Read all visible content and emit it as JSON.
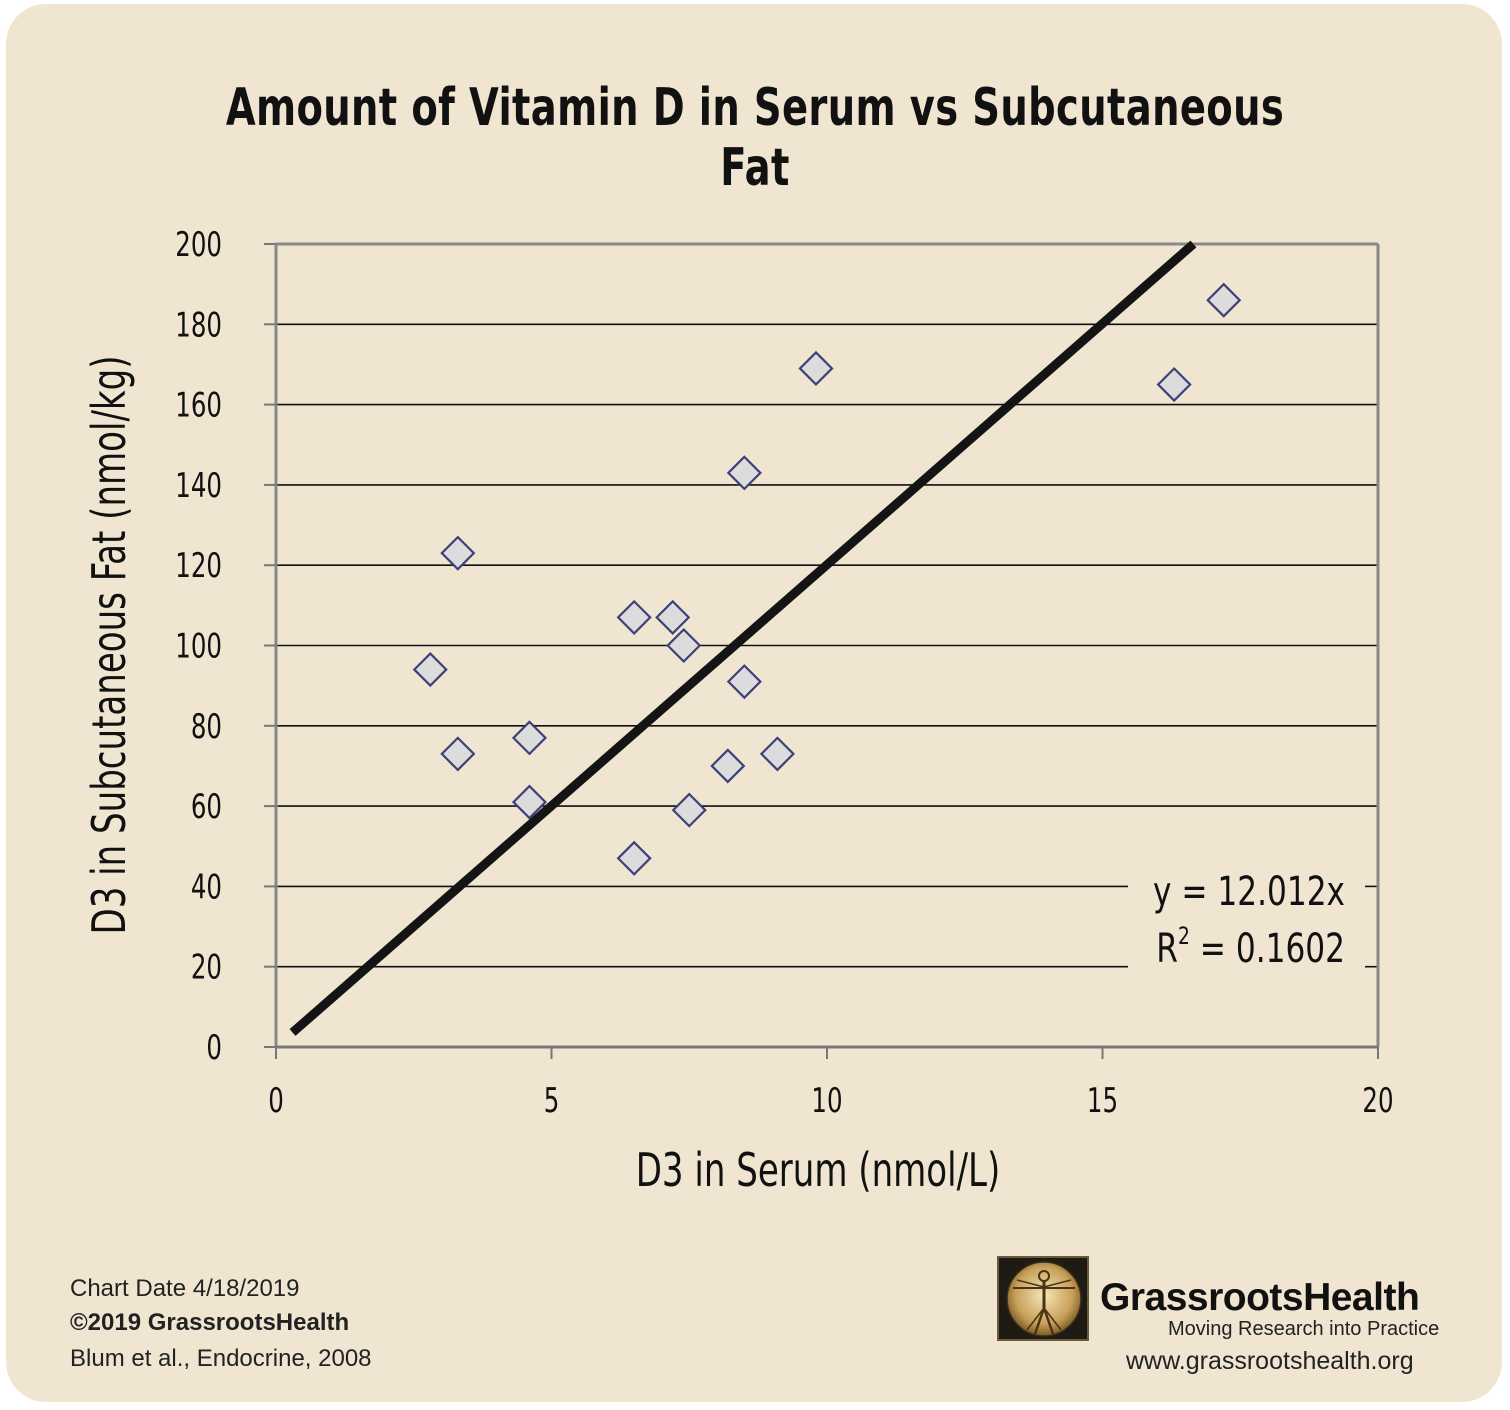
{
  "chart_data": {
    "type": "scatter",
    "title": "Amount of Vitamin D in Serum vs Subcutaneous Fat",
    "xlabel": "D3 in Serum (nmol/L)",
    "ylabel": "D3 in Subcutaneous Fat (nmol/kg)",
    "xlim": [
      0,
      20
    ],
    "ylim": [
      0,
      200
    ],
    "xticks": [
      "0",
      "5",
      "10",
      "15",
      "20"
    ],
    "yticks": [
      "0",
      "20",
      "40",
      "60",
      "80",
      "100",
      "120",
      "140",
      "160",
      "180",
      "200"
    ],
    "grid": "horizontal",
    "points": [
      {
        "x": 2.8,
        "y": 94
      },
      {
        "x": 3.3,
        "y": 123
      },
      {
        "x": 3.3,
        "y": 73
      },
      {
        "x": 4.6,
        "y": 77
      },
      {
        "x": 4.6,
        "y": 61
      },
      {
        "x": 6.5,
        "y": 107
      },
      {
        "x": 6.5,
        "y": 47
      },
      {
        "x": 7.2,
        "y": 107
      },
      {
        "x": 7.4,
        "y": 100
      },
      {
        "x": 7.5,
        "y": 59
      },
      {
        "x": 8.2,
        "y": 70
      },
      {
        "x": 8.5,
        "y": 143
      },
      {
        "x": 8.5,
        "y": 91
      },
      {
        "x": 9.1,
        "y": 73
      },
      {
        "x": 9.8,
        "y": 169
      },
      {
        "x": 16.3,
        "y": 165
      },
      {
        "x": 17.2,
        "y": 186
      }
    ],
    "trendline": {
      "slope": 12.012,
      "intercept": 0
    },
    "annotation": {
      "equation": "y = 12.012x",
      "r_squared_prefix": "R",
      "r_squared_sup": "2",
      "r_squared_value": " = 0.1602"
    },
    "colors": {
      "marker_fill": "#dcdcdc",
      "marker_stroke": "#3d4078",
      "trendline": "#141414",
      "grid": "#111111",
      "background": "#f0e5d1"
    }
  },
  "footer": {
    "chart_date": "Chart Date 4/18/2019",
    "copyright": "©2019 GrassrootsHealth",
    "citation": "Blum et al., Endocrine, 2008"
  },
  "brand": {
    "logo_icon": "vitruvian-man-icon",
    "name": "GrassrootsHealth",
    "tagline": "Moving Research into Practice",
    "url": "www.grassrootshealth.org"
  }
}
